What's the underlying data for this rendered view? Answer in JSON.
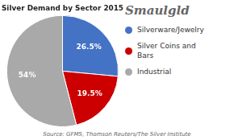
{
  "chart_data": {
    "type": "pie",
    "title": "Silver Demand by Sector 2015",
    "categories": [
      "Silverware/Jewelry",
      "Silver Coins and\nBars",
      "Industrial"
    ],
    "values": [
      26.5,
      19.5,
      54
    ],
    "value_labels": [
      "26.5%",
      "19.5%",
      "54%"
    ],
    "colors": [
      "#4472C4",
      "#CC0000",
      "#A9A9A9"
    ],
    "data_labels": true,
    "legend": "right",
    "annotations": [
      "Smaulgld",
      "Source: GFMS, Thomson Reuters/The Silver Institute"
    ]
  }
}
